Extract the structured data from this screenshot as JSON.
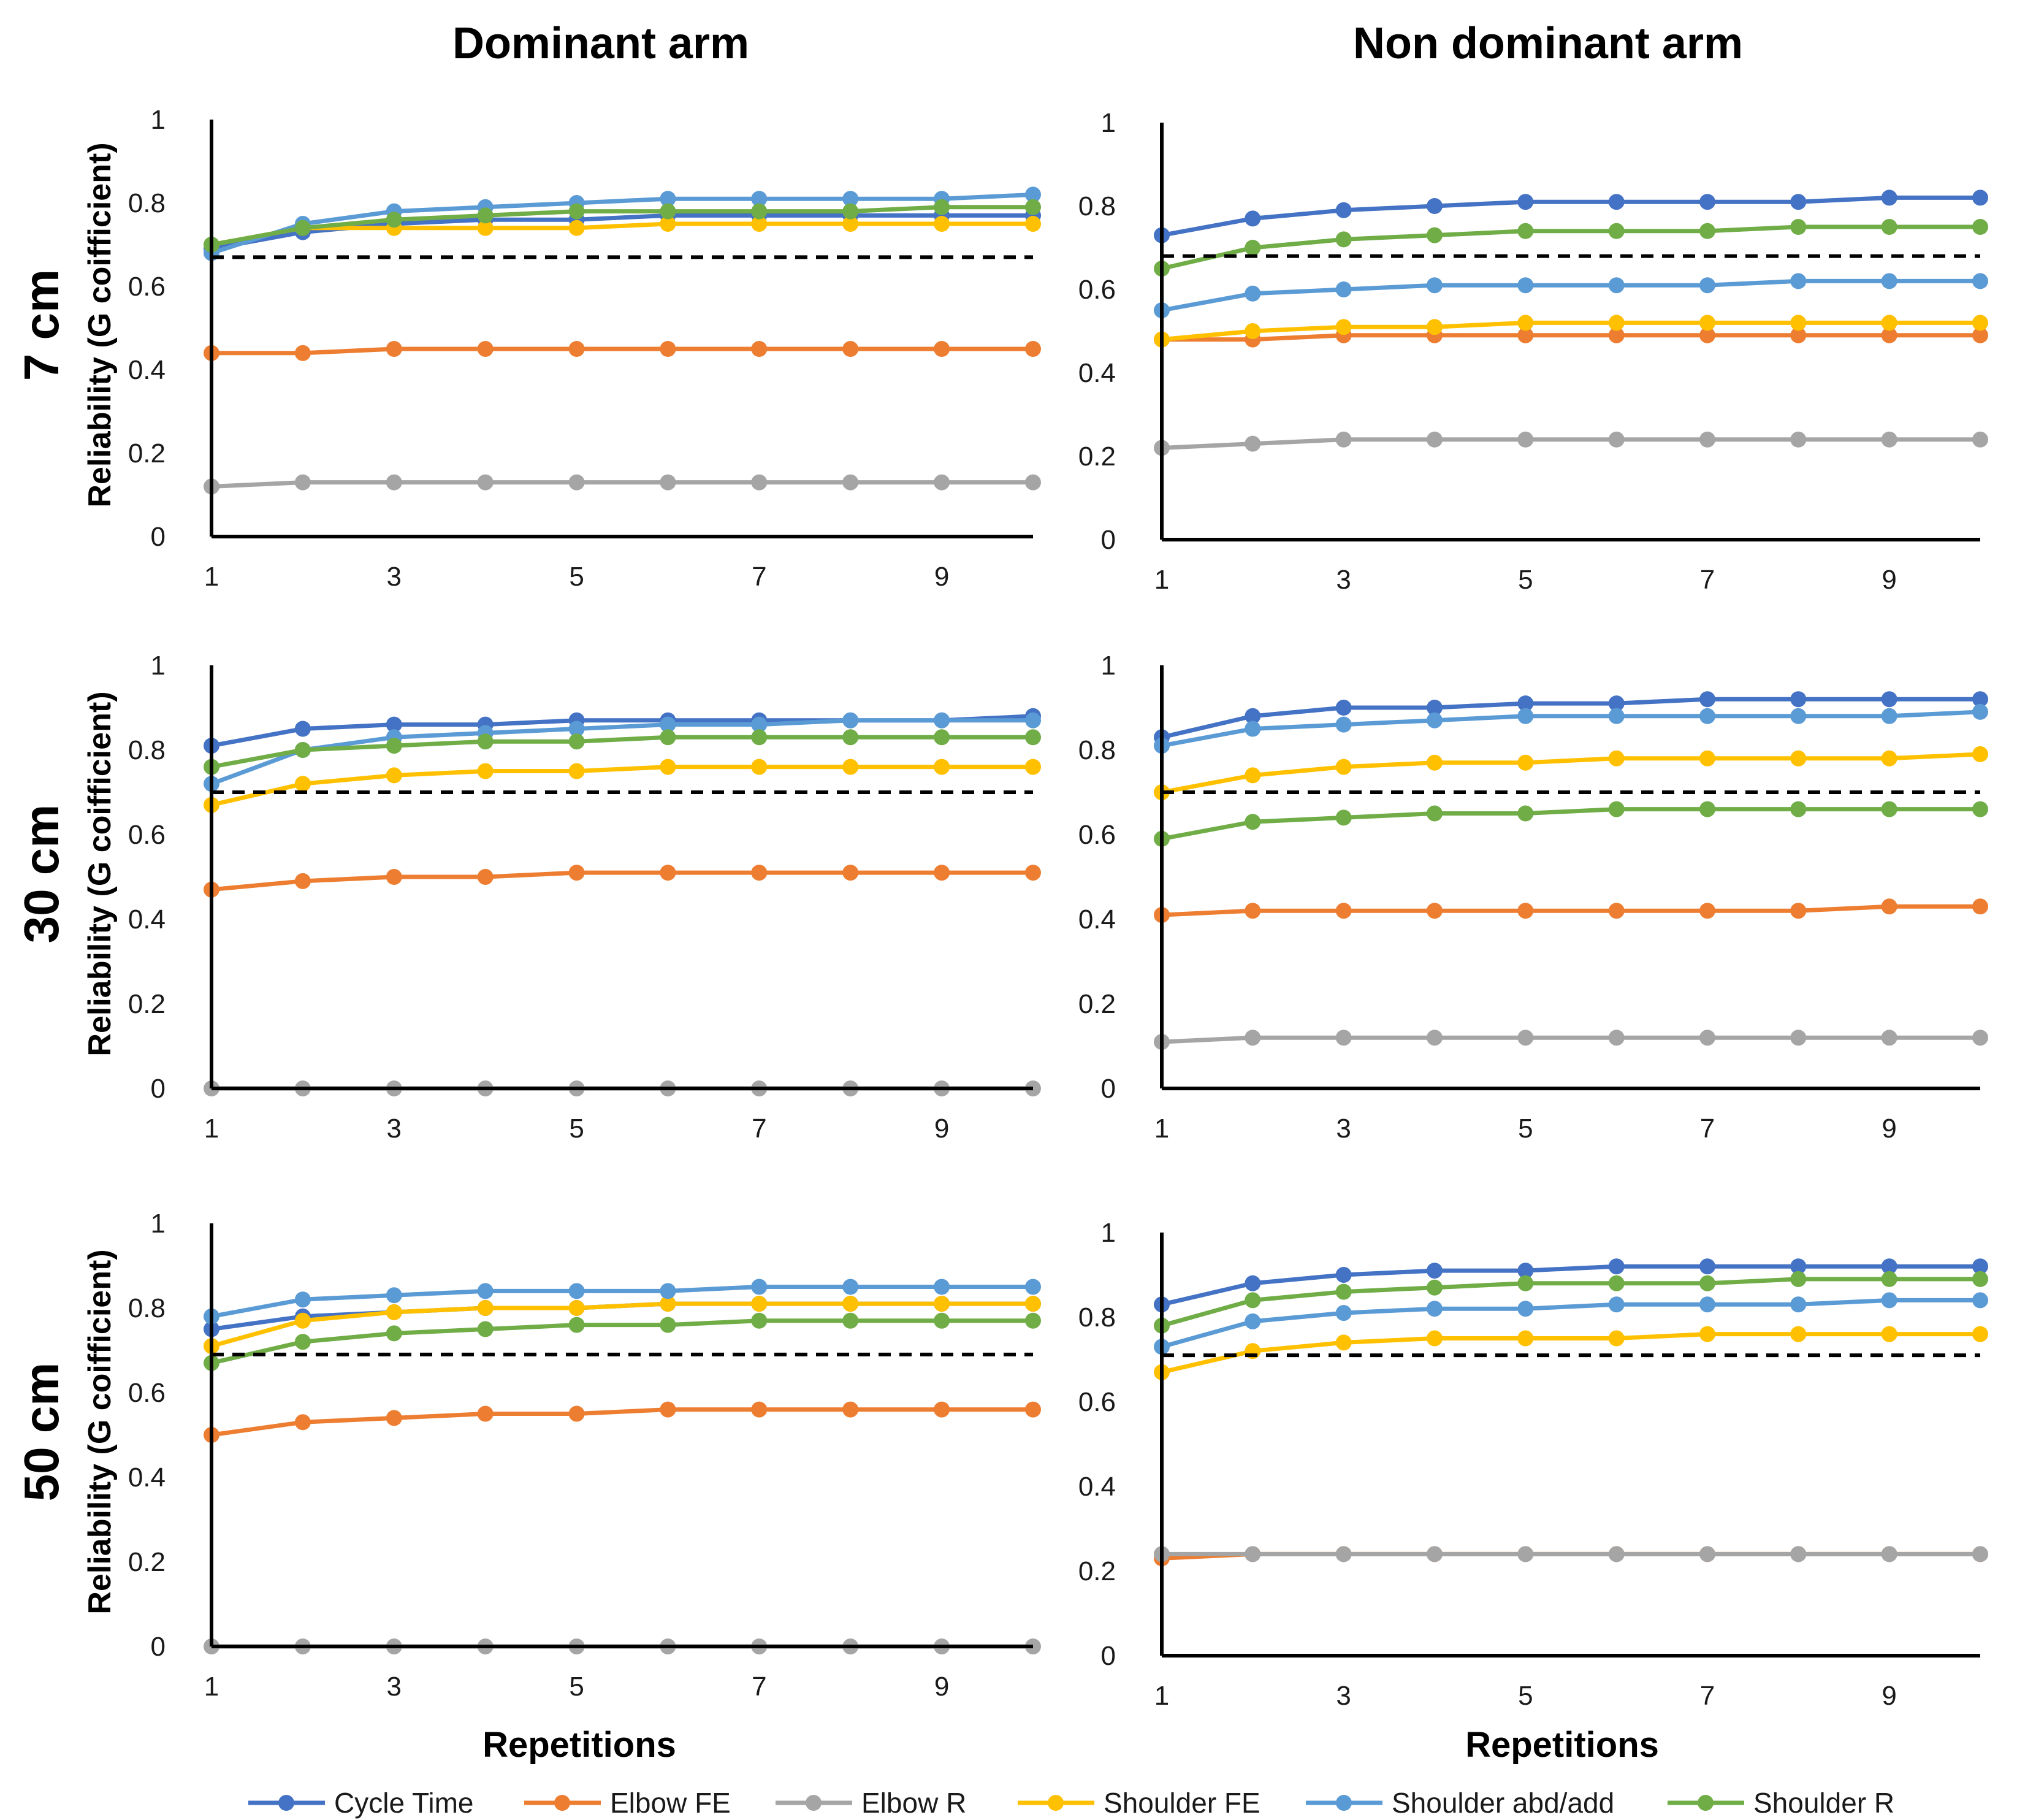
{
  "figure": {
    "col_titles": [
      "Dominant arm",
      "Non dominant arm"
    ],
    "row_titles": [
      "7 cm",
      "30 cm",
      "50 cm"
    ],
    "ylabel": "Reliability (G coifficient)",
    "xlabel": "Repetitions"
  },
  "legend": {
    "position": "bottom",
    "items": [
      {
        "name": "Cycle Time",
        "color": "#4472C4"
      },
      {
        "name": "Elbow FE",
        "color": "#ED7D31"
      },
      {
        "name": "Elbow R",
        "color": "#A5A5A5"
      },
      {
        "name": "Shoulder FE",
        "color": "#FFC000"
      },
      {
        "name": "Shoulder abd/add",
        "color": "#5B9BD5"
      },
      {
        "name": "Shoulder R",
        "color": "#70AD47"
      }
    ]
  },
  "chart_data": [
    {
      "type": "line",
      "panel": "7 cm / Dominant arm",
      "x": [
        1,
        2,
        3,
        4,
        5,
        6,
        7,
        8,
        9,
        10
      ],
      "xticks": [
        1,
        3,
        5,
        7,
        9
      ],
      "ylim": [
        0,
        1
      ],
      "yticks": [
        "0",
        "0.2",
        "0.4",
        "0.6",
        "0.8",
        "1"
      ],
      "threshold": 0.67,
      "grid": false,
      "series": [
        {
          "name": "Cycle Time",
          "values": [
            0.69,
            0.73,
            0.75,
            0.76,
            0.76,
            0.77,
            0.77,
            0.77,
            0.77,
            0.77
          ]
        },
        {
          "name": "Elbow FE",
          "values": [
            0.44,
            0.44,
            0.45,
            0.45,
            0.45,
            0.45,
            0.45,
            0.45,
            0.45,
            0.45
          ]
        },
        {
          "name": "Elbow R",
          "values": [
            0.12,
            0.13,
            0.13,
            0.13,
            0.13,
            0.13,
            0.13,
            0.13,
            0.13,
            0.13
          ]
        },
        {
          "name": "Shoulder FE",
          "values": [
            0.7,
            0.74,
            0.74,
            0.74,
            0.74,
            0.75,
            0.75,
            0.75,
            0.75,
            0.75
          ]
        },
        {
          "name": "Shoulder abd/add",
          "values": [
            0.68,
            0.75,
            0.78,
            0.79,
            0.8,
            0.81,
            0.81,
            0.81,
            0.81,
            0.82
          ]
        },
        {
          "name": "Shoulder R",
          "values": [
            0.7,
            0.74,
            0.76,
            0.77,
            0.78,
            0.78,
            0.78,
            0.78,
            0.79,
            0.79
          ]
        }
      ]
    },
    {
      "type": "line",
      "panel": "7 cm / Non dominant arm",
      "x": [
        1,
        2,
        3,
        4,
        5,
        6,
        7,
        8,
        9,
        10
      ],
      "xticks": [
        1,
        3,
        5,
        7,
        9
      ],
      "ylim": [
        0,
        1
      ],
      "yticks": [
        "0",
        "0.2",
        "0.4",
        "0.6",
        "0.8",
        "1"
      ],
      "threshold": 0.68,
      "grid": false,
      "series": [
        {
          "name": "Cycle Time",
          "values": [
            0.73,
            0.77,
            0.79,
            0.8,
            0.81,
            0.81,
            0.81,
            0.81,
            0.82,
            0.82
          ]
        },
        {
          "name": "Elbow FE",
          "values": [
            0.48,
            0.48,
            0.49,
            0.49,
            0.49,
            0.49,
            0.49,
            0.49,
            0.49,
            0.49
          ]
        },
        {
          "name": "Elbow R",
          "values": [
            0.22,
            0.23,
            0.24,
            0.24,
            0.24,
            0.24,
            0.24,
            0.24,
            0.24,
            0.24
          ]
        },
        {
          "name": "Shoulder FE",
          "values": [
            0.48,
            0.5,
            0.51,
            0.51,
            0.52,
            0.52,
            0.52,
            0.52,
            0.52,
            0.52
          ]
        },
        {
          "name": "Shoulder abd/add",
          "values": [
            0.55,
            0.59,
            0.6,
            0.61,
            0.61,
            0.61,
            0.61,
            0.62,
            0.62,
            0.62
          ]
        },
        {
          "name": "Shoulder R",
          "values": [
            0.65,
            0.7,
            0.72,
            0.73,
            0.74,
            0.74,
            0.74,
            0.75,
            0.75,
            0.75
          ]
        }
      ]
    },
    {
      "type": "line",
      "panel": "30 cm / Dominant arm",
      "x": [
        1,
        2,
        3,
        4,
        5,
        6,
        7,
        8,
        9,
        10
      ],
      "xticks": [
        1,
        3,
        5,
        7,
        9
      ],
      "ylim": [
        0,
        1
      ],
      "yticks": [
        "0",
        "0.2",
        "0.4",
        "0.6",
        "0.8",
        "1"
      ],
      "threshold": 0.7,
      "grid": false,
      "series": [
        {
          "name": "Cycle Time",
          "values": [
            0.81,
            0.85,
            0.86,
            0.86,
            0.87,
            0.87,
            0.87,
            0.87,
            0.87,
            0.88
          ]
        },
        {
          "name": "Elbow FE",
          "values": [
            0.47,
            0.49,
            0.5,
            0.5,
            0.51,
            0.51,
            0.51,
            0.51,
            0.51,
            0.51
          ]
        },
        {
          "name": "Elbow R",
          "values": [
            0,
            0,
            0,
            0,
            0,
            0,
            0,
            0,
            0,
            0
          ]
        },
        {
          "name": "Shoulder FE",
          "values": [
            0.67,
            0.72,
            0.74,
            0.75,
            0.75,
            0.76,
            0.76,
            0.76,
            0.76,
            0.76
          ]
        },
        {
          "name": "Shoulder abd/add",
          "values": [
            0.72,
            0.8,
            0.83,
            0.84,
            0.85,
            0.86,
            0.86,
            0.87,
            0.87,
            0.87
          ]
        },
        {
          "name": "Shoulder R",
          "values": [
            0.76,
            0.8,
            0.81,
            0.82,
            0.82,
            0.83,
            0.83,
            0.83,
            0.83,
            0.83
          ]
        }
      ]
    },
    {
      "type": "line",
      "panel": "30 cm / Non dominant arm",
      "x": [
        1,
        2,
        3,
        4,
        5,
        6,
        7,
        8,
        9,
        10
      ],
      "xticks": [
        1,
        3,
        5,
        7,
        9
      ],
      "ylim": [
        0,
        1
      ],
      "yticks": [
        "0",
        "0.2",
        "0.4",
        "0.6",
        "0.8",
        "1"
      ],
      "threshold": 0.7,
      "grid": false,
      "series": [
        {
          "name": "Cycle Time",
          "values": [
            0.83,
            0.88,
            0.9,
            0.9,
            0.91,
            0.91,
            0.92,
            0.92,
            0.92,
            0.92
          ]
        },
        {
          "name": "Elbow FE",
          "values": [
            0.41,
            0.42,
            0.42,
            0.42,
            0.42,
            0.42,
            0.42,
            0.42,
            0.43,
            0.43
          ]
        },
        {
          "name": "Elbow R",
          "values": [
            0.11,
            0.12,
            0.12,
            0.12,
            0.12,
            0.12,
            0.12,
            0.12,
            0.12,
            0.12
          ]
        },
        {
          "name": "Shoulder FE",
          "values": [
            0.7,
            0.74,
            0.76,
            0.77,
            0.77,
            0.78,
            0.78,
            0.78,
            0.78,
            0.79
          ]
        },
        {
          "name": "Shoulder abd/add",
          "values": [
            0.81,
            0.85,
            0.86,
            0.87,
            0.88,
            0.88,
            0.88,
            0.88,
            0.88,
            0.89
          ]
        },
        {
          "name": "Shoulder R",
          "values": [
            0.59,
            0.63,
            0.64,
            0.65,
            0.65,
            0.66,
            0.66,
            0.66,
            0.66,
            0.66
          ]
        }
      ]
    },
    {
      "type": "line",
      "panel": "50 cm / Dominant arm",
      "x": [
        1,
        2,
        3,
        4,
        5,
        6,
        7,
        8,
        9,
        10
      ],
      "xticks": [
        1,
        3,
        5,
        7,
        9
      ],
      "ylim": [
        0,
        1
      ],
      "yticks": [
        "0",
        "0.2",
        "0.4",
        "0.6",
        "0.8",
        "1"
      ],
      "threshold": 0.69,
      "grid": false,
      "series": [
        {
          "name": "Cycle Time",
          "values": [
            0.75,
            0.78,
            0.79,
            0.8,
            0.8,
            0.81,
            0.81,
            0.81,
            0.81,
            0.81
          ]
        },
        {
          "name": "Elbow FE",
          "values": [
            0.5,
            0.53,
            0.54,
            0.55,
            0.55,
            0.56,
            0.56,
            0.56,
            0.56,
            0.56
          ]
        },
        {
          "name": "Elbow R",
          "values": [
            0,
            0,
            0,
            0,
            0,
            0,
            0,
            0,
            0,
            0
          ]
        },
        {
          "name": "Shoulder FE",
          "values": [
            0.71,
            0.77,
            0.79,
            0.8,
            0.8,
            0.81,
            0.81,
            0.81,
            0.81,
            0.81
          ]
        },
        {
          "name": "Shoulder abd/add",
          "values": [
            0.78,
            0.82,
            0.83,
            0.84,
            0.84,
            0.84,
            0.85,
            0.85,
            0.85,
            0.85
          ]
        },
        {
          "name": "Shoulder R",
          "values": [
            0.67,
            0.72,
            0.74,
            0.75,
            0.76,
            0.76,
            0.77,
            0.77,
            0.77,
            0.77
          ]
        }
      ]
    },
    {
      "type": "line",
      "panel": "50 cm / Non dominant arm",
      "x": [
        1,
        2,
        3,
        4,
        5,
        6,
        7,
        8,
        9,
        10
      ],
      "xticks": [
        1,
        3,
        5,
        7,
        9
      ],
      "ylim": [
        0,
        1
      ],
      "yticks": [
        "0",
        "0.2",
        "0.4",
        "0.6",
        "0.8",
        "1"
      ],
      "threshold": 0.71,
      "grid": false,
      "series": [
        {
          "name": "Cycle Time",
          "values": [
            0.83,
            0.88,
            0.9,
            0.91,
            0.91,
            0.92,
            0.92,
            0.92,
            0.92,
            0.92
          ]
        },
        {
          "name": "Elbow FE",
          "values": [
            0.23,
            0.24,
            0.24,
            0.24,
            0.24,
            0.24,
            0.24,
            0.24,
            0.24,
            0.24
          ]
        },
        {
          "name": "Elbow R",
          "values": [
            0.24,
            0.24,
            0.24,
            0.24,
            0.24,
            0.24,
            0.24,
            0.24,
            0.24,
            0.24
          ]
        },
        {
          "name": "Shoulder FE",
          "values": [
            0.67,
            0.72,
            0.74,
            0.75,
            0.75,
            0.75,
            0.76,
            0.76,
            0.76,
            0.76
          ]
        },
        {
          "name": "Shoulder abd/add",
          "values": [
            0.73,
            0.79,
            0.81,
            0.82,
            0.82,
            0.83,
            0.83,
            0.83,
            0.84,
            0.84
          ]
        },
        {
          "name": "Shoulder R",
          "values": [
            0.78,
            0.84,
            0.86,
            0.87,
            0.88,
            0.88,
            0.88,
            0.89,
            0.89,
            0.89
          ]
        }
      ]
    }
  ]
}
